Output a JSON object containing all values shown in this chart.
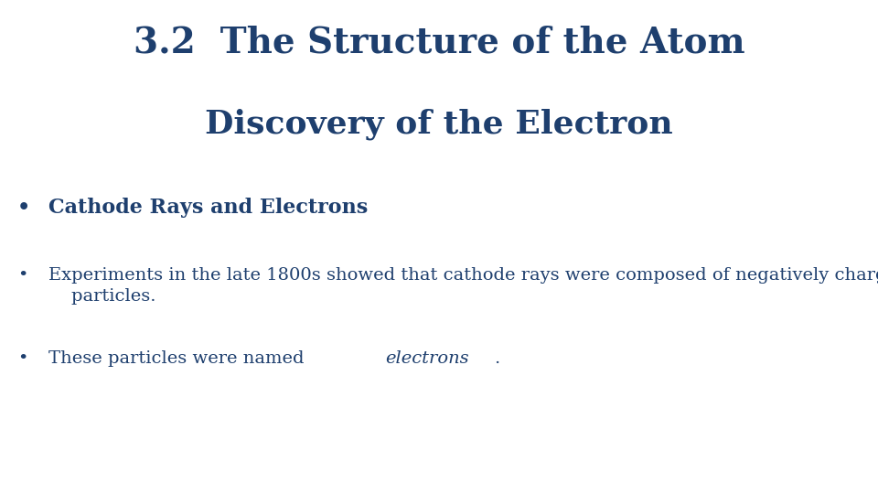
{
  "title": "3.2  The Structure of the Atom",
  "subtitle": "Discovery of the Electron",
  "bullet1_bold": "Cathode Rays and Electrons",
  "bullet2_line1": "Experiments in the late 1800s showed that cathode rays were composed of negatively charged",
  "bullet2_line2": "    particles.",
  "bullet3_plain": "These particles were named ",
  "bullet3_italic": "electrons",
  "bullet3_end": ".",
  "text_color": "#1e3f6e",
  "bg_color": "#ffffff",
  "title_fontsize": 28,
  "subtitle_fontsize": 26,
  "bullet1_fontsize": 16,
  "bullet2_fontsize": 14,
  "bullet3_fontsize": 14
}
